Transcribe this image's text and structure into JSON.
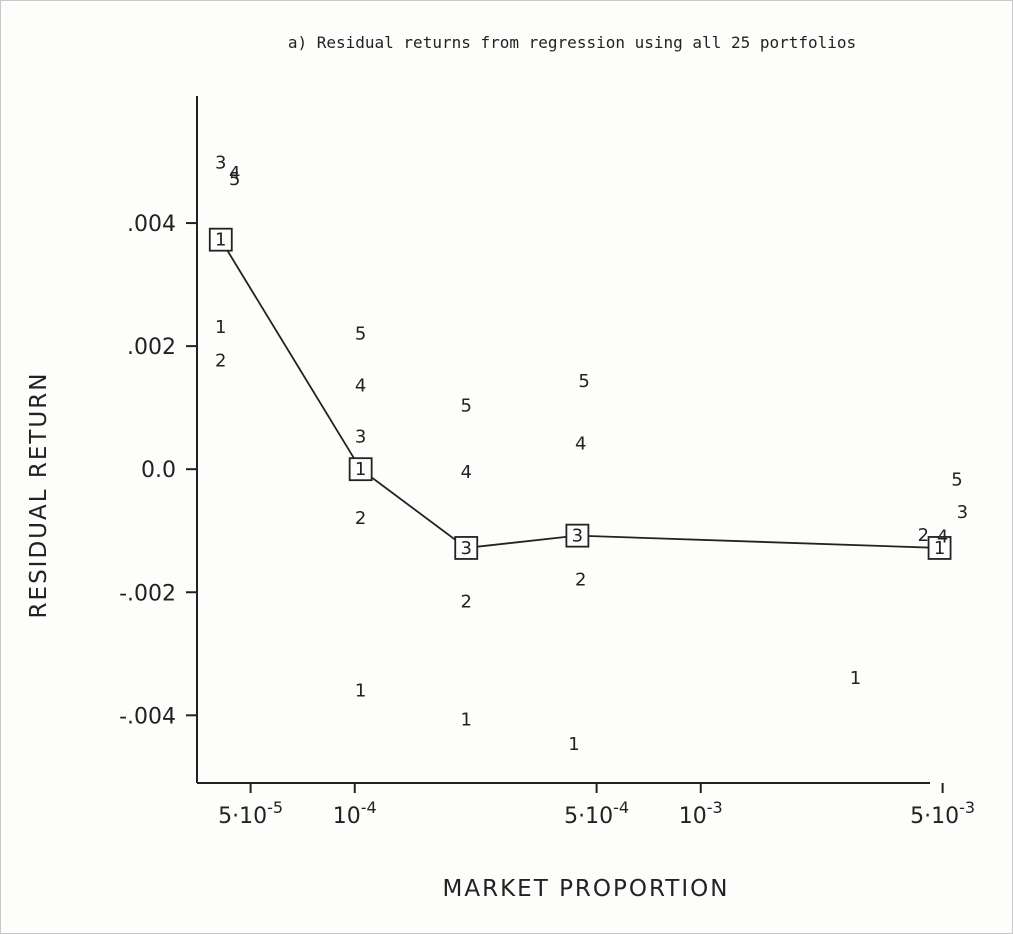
{
  "chart_data": {
    "type": "scatter",
    "title": "a) Residual returns from regression using all 25 portfolios",
    "xlabel": "MARKET PROPORTION",
    "ylabel": "RESIDUAL RETURN",
    "x_scale": "log",
    "xlim": [
      3.5e-05,
      0.006
    ],
    "ylim": [
      -0.0051,
      0.006
    ],
    "x_tick_values": [
      5e-05,
      0.0001,
      0.0005,
      0.001,
      0.005
    ],
    "x_tick_base": [
      "5·10",
      "10",
      "5·10",
      "10",
      "5·10"
    ],
    "x_tick_exp": [
      "-5",
      "-4",
      "-4",
      "-3",
      "-3"
    ],
    "y_ticks": [
      {
        "value": 0.004,
        "label": ".004"
      },
      {
        "value": 0.002,
        "label": ".002"
      },
      {
        "value": 0.0,
        "label": "0.0"
      },
      {
        "value": -0.002,
        "label": "-.002"
      },
      {
        "value": -0.004,
        "label": "-.004"
      }
    ],
    "mean_series": {
      "marker": "square",
      "x": [
        4.1e-05,
        0.000104,
        0.00021,
        0.00044,
        0.0049
      ],
      "y": [
        0.00373,
        0.0,
        -0.00128,
        -0.00108,
        -0.00128
      ],
      "labels": [
        "1",
        "1",
        "3",
        "3",
        "1"
      ]
    },
    "points": [
      {
        "label": "3",
        "x": 4.1e-05,
        "y": 0.005
      },
      {
        "label": "4",
        "x": 4.5e-05,
        "y": 0.00483
      },
      {
        "label": "5",
        "x": 4.5e-05,
        "y": 0.00473
      },
      {
        "label": "1",
        "x": 4.1e-05,
        "y": 0.00233
      },
      {
        "label": "2",
        "x": 4.1e-05,
        "y": 0.00178
      },
      {
        "label": "5",
        "x": 0.000104,
        "y": 0.00222
      },
      {
        "label": "4",
        "x": 0.000104,
        "y": 0.00138
      },
      {
        "label": "3",
        "x": 0.000104,
        "y": 0.00055
      },
      {
        "label": "2",
        "x": 0.000104,
        "y": -0.00078
      },
      {
        "label": "1",
        "x": 0.000104,
        "y": -0.00358
      },
      {
        "label": "5",
        "x": 0.00021,
        "y": 0.00105
      },
      {
        "label": "4",
        "x": 0.00021,
        "y": -3e-05
      },
      {
        "label": "2",
        "x": 0.00021,
        "y": -0.00213
      },
      {
        "label": "1",
        "x": 0.00021,
        "y": -0.00405
      },
      {
        "label": "5",
        "x": 0.00046,
        "y": 0.00145
      },
      {
        "label": "4",
        "x": 0.00045,
        "y": 0.00043
      },
      {
        "label": "2",
        "x": 0.00045,
        "y": -0.00178
      },
      {
        "label": "1",
        "x": 0.00043,
        "y": -0.00445
      },
      {
        "label": "5",
        "x": 0.0055,
        "y": -0.00015
      },
      {
        "label": "3",
        "x": 0.0057,
        "y": -0.00068
      },
      {
        "label": "2",
        "x": 0.0044,
        "y": -0.00105
      },
      {
        "label": "4",
        "x": 0.005,
        "y": -0.00108
      },
      {
        "label": "1",
        "x": 0.0028,
        "y": -0.00338
      }
    ]
  }
}
